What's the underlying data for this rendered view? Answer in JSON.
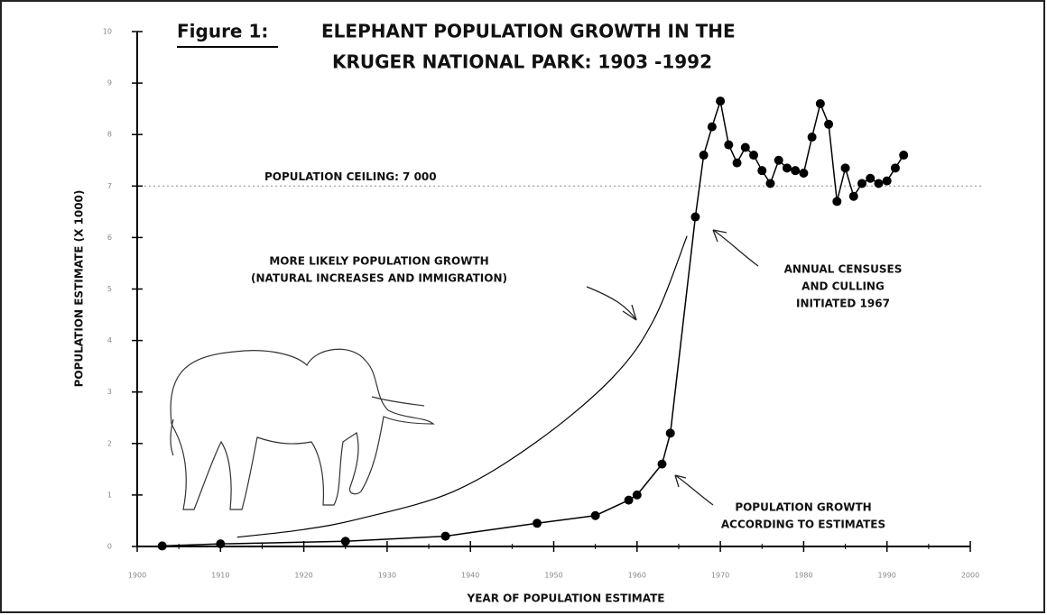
{
  "chart_data": {
    "type": "line",
    "title_prefix": "Figure 1:",
    "title": [
      "ELEPHANT POPULATION GROWTH IN THE",
      "KRUGER NATIONAL PARK: 1903 -1992"
    ],
    "xlabel": "YEAR OF POPULATION ESTIMATE",
    "ylabel": "POPULATION ESTIMATE (X 1000)",
    "xlim": [
      1900,
      2000
    ],
    "xticks": [
      1900,
      1910,
      1920,
      1930,
      1940,
      1950,
      1960,
      1970,
      1980,
      1990,
      2000
    ],
    "ylim": [
      0,
      10
    ],
    "yticks": [
      0,
      1,
      2,
      3,
      4,
      5,
      6,
      7,
      8,
      9,
      10
    ],
    "series": [
      {
        "color": "#000000",
        "markers": true,
        "x": [
          1903,
          1910,
          1925,
          1937,
          1948,
          1955,
          1959,
          1960,
          1963,
          1964,
          1967,
          1968,
          1969,
          1970,
          1971,
          1972,
          1973,
          1974,
          1975,
          1976,
          1977,
          1978,
          1979,
          1980,
          1981,
          1982,
          1983,
          1984,
          1985,
          1986,
          1987,
          1988,
          1989,
          1990,
          1991,
          1992
        ],
        "values": [
          0.01,
          0.05,
          0.1,
          0.2,
          0.45,
          0.6,
          0.9,
          1.0,
          1.6,
          2.2,
          6.4,
          7.6,
          8.15,
          8.65,
          7.8,
          7.45,
          7.75,
          7.6,
          7.3,
          7.05,
          7.5,
          7.35,
          7.3,
          7.25,
          7.95,
          8.6,
          8.2,
          6.7,
          7.35,
          6.8,
          7.05,
          7.15,
          7.05,
          7.1,
          7.35,
          7.6
        ]
      },
      {
        "color": "#000000",
        "markers": false,
        "x": [
          1912,
          1920,
          1927,
          1938,
          1948,
          1957,
          1962,
          1966
        ],
        "values": [
          0.18,
          0.33,
          0.55,
          1.07,
          2.04,
          3.27,
          4.4,
          6.03
        ]
      }
    ],
    "ceiling": {
      "value": 7,
      "label": "POPULATION CEILING: 7 000"
    },
    "annotations": [
      [
        "MORE LIKELY POPULATION GROWTH",
        "(NATURAL INCREASES AND IMMIGRATION)"
      ],
      [
        "ANNUAL CENSUSES",
        "AND CULLING",
        "INITIATED 1967"
      ],
      [
        "POPULATION GROWTH",
        "ACCORDING TO ESTIMATES"
      ]
    ]
  }
}
